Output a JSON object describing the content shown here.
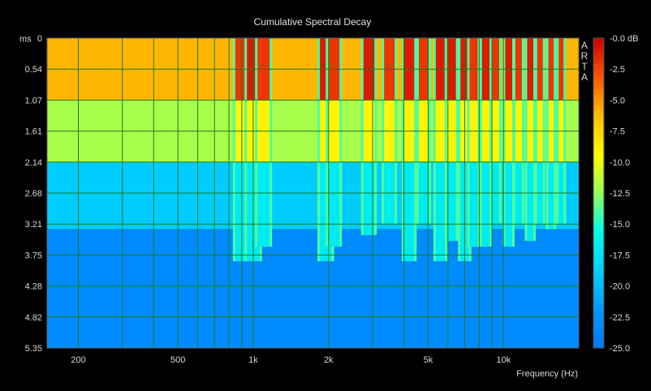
{
  "chart_data": {
    "type": "heatmap",
    "title": "Cumulative Spectral Decay",
    "xlabel": "Frequency (Hz)",
    "ylabel": "ms",
    "watermark": "ARTA",
    "x_scale": "log",
    "x_range": [
      150,
      20000
    ],
    "y_range": [
      0,
      5.35
    ],
    "x_ticks": [
      {
        "value": 200,
        "label": "200"
      },
      {
        "value": 500,
        "label": "500"
      },
      {
        "value": 1000,
        "label": "1k"
      },
      {
        "value": 2000,
        "label": "2k"
      },
      {
        "value": 5000,
        "label": "5k"
      },
      {
        "value": 10000,
        "label": "10k"
      }
    ],
    "y_ticks": [
      "0",
      "0.54",
      "1.07",
      "1.61",
      "2.14",
      "2.68",
      "3.21",
      "3.75",
      "4.28",
      "4.82",
      "5.35"
    ],
    "colorbar": {
      "min": -25,
      "max": 0,
      "unit": "dB",
      "ticks": [
        "-0.0 dB",
        "-2.5",
        "-5.0",
        "-7.5",
        "-10.0",
        "-12.5",
        "-15.0",
        "-17.5",
        "-20.0",
        "-22.5",
        "-25.0"
      ]
    },
    "grid": true,
    "resonances": [
      {
        "f": 900,
        "decay_ms": 3.85,
        "level_db": -2
      },
      {
        "f": 1000,
        "decay_ms": 3.85,
        "level_db": -1
      },
      {
        "f": 1100,
        "decay_ms": 3.6,
        "level_db": -2
      },
      {
        "f": 1950,
        "decay_ms": 3.85,
        "level_db": -1
      },
      {
        "f": 2100,
        "decay_ms": 3.6,
        "level_db": -2
      },
      {
        "f": 2900,
        "decay_ms": 3.4,
        "level_db": -1
      },
      {
        "f": 3500,
        "decay_ms": 3.2,
        "level_db": -2
      },
      {
        "f": 4200,
        "decay_ms": 3.85,
        "level_db": -1
      },
      {
        "f": 4800,
        "decay_ms": 3.2,
        "level_db": -2
      },
      {
        "f": 5600,
        "decay_ms": 3.85,
        "level_db": -1
      },
      {
        "f": 6200,
        "decay_ms": 3.5,
        "level_db": -1
      },
      {
        "f": 7000,
        "decay_ms": 3.85,
        "level_db": -1
      },
      {
        "f": 7600,
        "decay_ms": 3.6,
        "level_db": -2
      },
      {
        "f": 8500,
        "decay_ms": 3.6,
        "level_db": -1
      },
      {
        "f": 9300,
        "decay_ms": 3.2,
        "level_db": -2
      },
      {
        "f": 10500,
        "decay_ms": 3.6,
        "level_db": -1
      },
      {
        "f": 11500,
        "decay_ms": 3.2,
        "level_db": -2
      },
      {
        "f": 12800,
        "decay_ms": 3.5,
        "level_db": -1
      },
      {
        "f": 14000,
        "decay_ms": 3.2,
        "level_db": -2
      },
      {
        "f": 15500,
        "decay_ms": 3.3,
        "level_db": -2
      },
      {
        "f": 17000,
        "decay_ms": 3.2,
        "level_db": -2
      }
    ],
    "decay_bands": [
      {
        "t_start": 0,
        "t_end": 1.07,
        "level_db": -6
      },
      {
        "t_start": 1.07,
        "t_end": 2.14,
        "level_db": -12
      },
      {
        "t_start": 2.14,
        "t_end": 3.3,
        "level_db": -19
      },
      {
        "t_start": 3.3,
        "t_end": 5.35,
        "level_db": -23
      }
    ]
  }
}
